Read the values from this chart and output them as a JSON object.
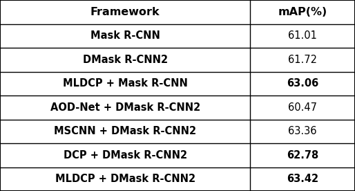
{
  "headers": [
    "Framework",
    "mAP(%)"
  ],
  "rows": [
    [
      "Mask R-CNN",
      "61.01"
    ],
    [
      "DMask R-CNN2",
      "61.72"
    ],
    [
      "MLDCP + Mask R-CNN",
      "63.06"
    ],
    [
      "AOD-Net + DMask R-CNN2",
      "60.47"
    ],
    [
      "MSCNN + DMask R-CNN2",
      "63.36"
    ],
    [
      "DCP + DMask R-CNN2",
      "62.78"
    ],
    [
      "MLDCP + DMask R-CNN2",
      "63.42"
    ]
  ],
  "framework_bold": [
    0,
    1,
    2,
    3,
    4,
    5,
    6
  ],
  "map_bold": [
    2,
    5,
    6
  ],
  "bg_color": "#ffffff",
  "line_color": "#000000",
  "text_color": "#000000",
  "header_fontsize": 11.5,
  "row_fontsize": 10.5,
  "col_split": 0.705
}
